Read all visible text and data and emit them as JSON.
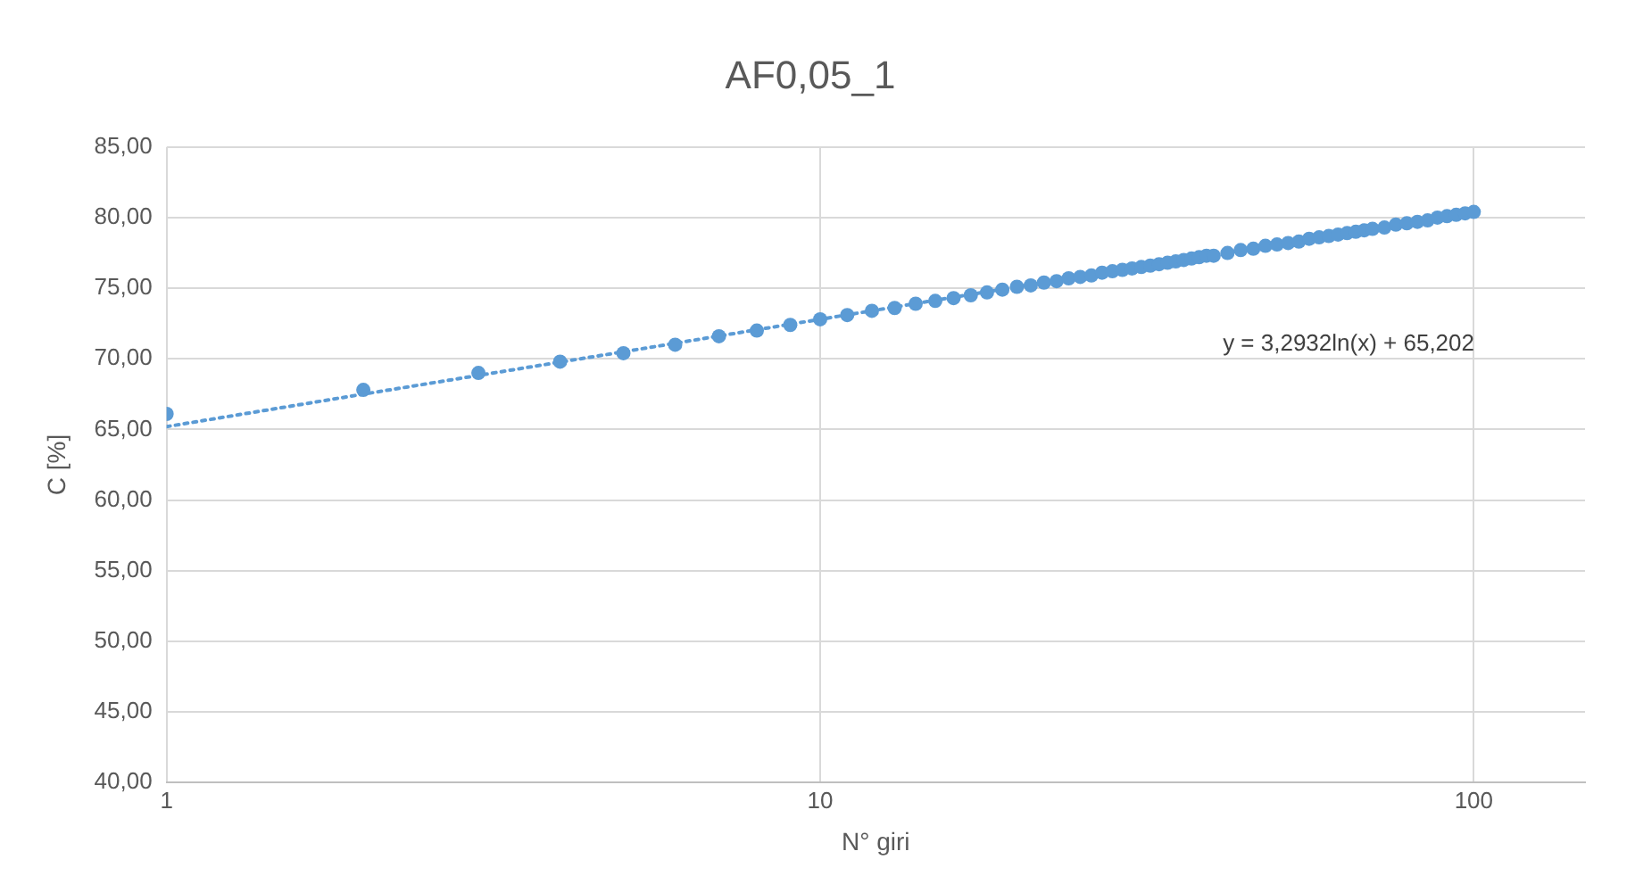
{
  "chart_data": {
    "type": "scatter",
    "title": "AF0,05_1",
    "xlabel": "N° giri",
    "ylabel": "C [%]",
    "log": "x",
    "xlim": [
      1,
      148
    ],
    "xticks": [
      1,
      10,
      100
    ],
    "ylim": [
      40,
      85
    ],
    "yticks": [
      {
        "value": 40,
        "label": "40,00"
      },
      {
        "value": 45,
        "label": "45,00"
      },
      {
        "value": 50,
        "label": "50,00"
      },
      {
        "value": 55,
        "label": "55,00"
      },
      {
        "value": 60,
        "label": "60,00"
      },
      {
        "value": 65,
        "label": "65,00"
      },
      {
        "value": 70,
        "label": "70,00"
      },
      {
        "value": 75,
        "label": "75,00"
      },
      {
        "value": 80,
        "label": "80,00"
      },
      {
        "value": 85,
        "label": "85,00"
      }
    ],
    "grid": true,
    "legend": false,
    "marker": "circle",
    "annotations": [
      "y = 3,2932ln(x) + 65,202"
    ],
    "series": [
      {
        "color": "#5b9bd5",
        "x": [
          1,
          2,
          3,
          4,
          5,
          6,
          7,
          8,
          9,
          10,
          11,
          12,
          13,
          14,
          15,
          16,
          17,
          18,
          19,
          20,
          21,
          22,
          23,
          24,
          25,
          26,
          27,
          28,
          29,
          30,
          31,
          32,
          33,
          34,
          35,
          36,
          37,
          38,
          39,
          40,
          42,
          44,
          46,
          48,
          50,
          52,
          54,
          56,
          58,
          60,
          62,
          64,
          66,
          68,
          70,
          73,
          76,
          79,
          82,
          85,
          88,
          91,
          94,
          97,
          100
        ],
        "values": [
          66.1,
          67.8,
          69.0,
          69.8,
          70.4,
          71.0,
          71.6,
          72.0,
          72.4,
          72.8,
          73.1,
          73.4,
          73.6,
          73.9,
          74.1,
          74.3,
          74.5,
          74.7,
          74.9,
          75.1,
          75.2,
          75.4,
          75.5,
          75.7,
          75.8,
          75.9,
          76.1,
          76.2,
          76.3,
          76.4,
          76.5,
          76.6,
          76.7,
          76.8,
          76.9,
          77.0,
          77.1,
          77.2,
          77.3,
          77.3,
          77.5,
          77.7,
          77.8,
          78.0,
          78.1,
          78.2,
          78.3,
          78.5,
          78.6,
          78.7,
          78.8,
          78.9,
          79.0,
          79.1,
          79.2,
          79.3,
          79.5,
          79.6,
          79.7,
          79.8,
          80.0,
          80.1,
          80.2,
          80.3,
          80.4
        ]
      },
      {
        "type": "line",
        "color": "#5b9bd5",
        "line_style": "dotted",
        "marker": "none",
        "x": [
          1,
          2,
          5,
          10,
          20,
          50,
          100
        ],
        "values": [
          65.2,
          67.5,
          70.5,
          72.8,
          75.1,
          78.1,
          80.4
        ]
      }
    ]
  }
}
